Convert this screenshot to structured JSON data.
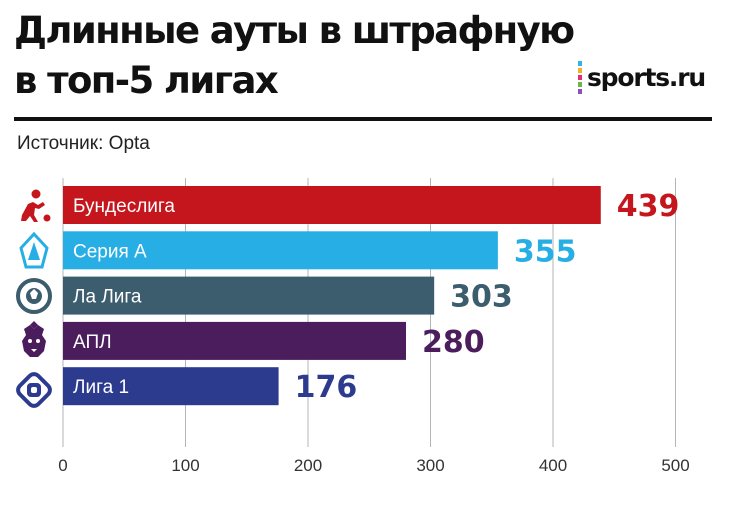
{
  "header": {
    "title_line1": "Длинные ауты в штрафную",
    "title_line2": "в топ-5 лигах",
    "brand": "sports.ru",
    "source": "Источник: Opta"
  },
  "colors": {
    "bundesliga": "#c4161c",
    "seriea": "#27aee4",
    "laliga": "#3b5d6e",
    "epl": "#4b1d5c",
    "ligue1": "#2c3b8e",
    "grid": "#b5b5b5"
  },
  "chart_data": {
    "type": "bar",
    "orientation": "horizontal",
    "title": "Длинные ауты в штрафную в топ-5 лигах",
    "categories": [
      "Бундеслига",
      "Серия А",
      "Ла Лига",
      "АПЛ",
      "Лига 1"
    ],
    "values": [
      439,
      355,
      303,
      280,
      176
    ],
    "bar_colors": [
      "#c4161c",
      "#27aee4",
      "#3b5d6e",
      "#4b1d5c",
      "#2c3b8e"
    ],
    "icons": [
      "bundesliga-icon",
      "serie-a-icon",
      "la-liga-icon",
      "premier-league-icon",
      "ligue-1-icon"
    ],
    "xlim": [
      0,
      500
    ],
    "xticks": [
      0,
      100,
      200,
      300,
      400,
      500
    ],
    "grid": true,
    "xlabel": "",
    "ylabel": ""
  }
}
